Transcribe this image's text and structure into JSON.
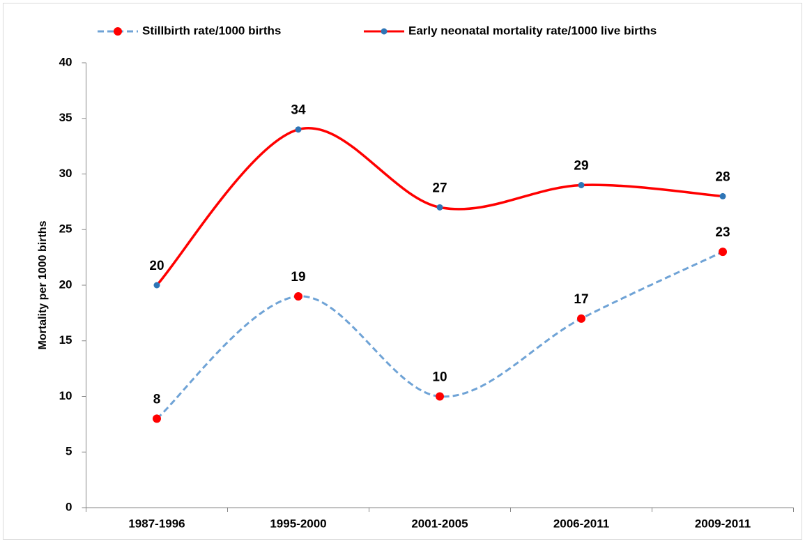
{
  "chart_data": {
    "type": "line",
    "y_label": "Mortality per 1000 births",
    "categories": [
      "1987-1996",
      "1995-2000",
      "2001-2005",
      "2006-2011",
      "2009-2011"
    ],
    "series": [
      {
        "name": "Stillbirth rate/1000 births",
        "color": "#6fa3d6",
        "marker_color": "#ff0000",
        "dashed": true,
        "values": [
          8,
          19,
          10,
          17,
          23
        ]
      },
      {
        "name": "Early neonatal mortality rate/1000 live births",
        "color": "#ff0000",
        "marker_color": "#2e75b6",
        "dashed": false,
        "values": [
          20,
          34,
          27,
          29,
          28
        ]
      }
    ],
    "ylim": [
      0,
      40
    ],
    "yticks": [
      0,
      5,
      10,
      15,
      20,
      25,
      30,
      35,
      40
    ],
    "smooth": true,
    "legend": "top"
  }
}
